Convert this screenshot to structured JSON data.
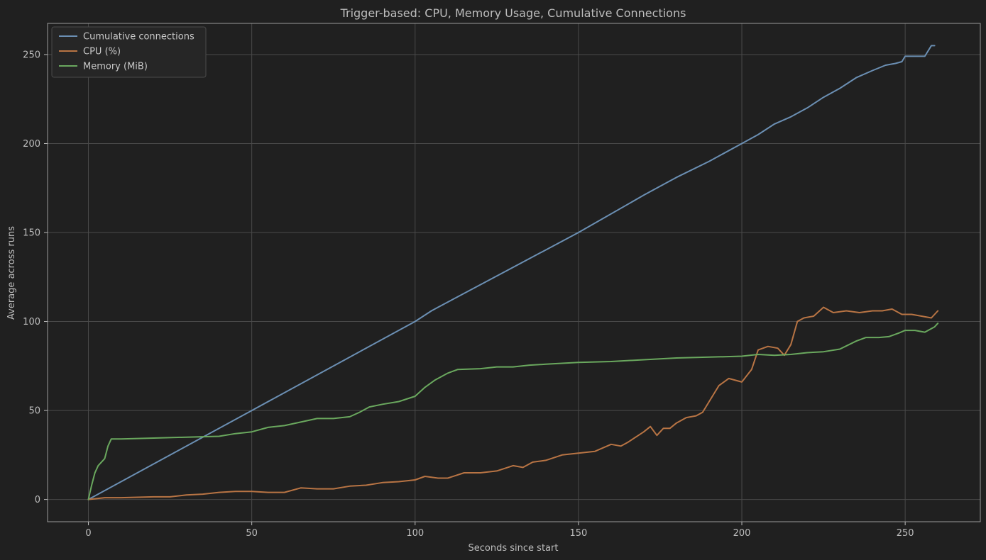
{
  "chart_data": {
    "type": "line",
    "title": "Trigger-based: CPU, Memory Usage, Cumulative Connections",
    "xlabel": "Seconds since start",
    "ylabel": "Average across runs",
    "xlim": [
      -12.5,
      273
    ],
    "ylim": [
      -12.5,
      267.5
    ],
    "xticks": [
      0,
      50,
      100,
      150,
      200,
      250
    ],
    "yticks": [
      0,
      50,
      100,
      150,
      200,
      250
    ],
    "grid": true,
    "legend_position": "top-left",
    "series": [
      {
        "name": "Cumulative connections",
        "color": "#6b8fb3",
        "points": [
          [
            0,
            0
          ],
          [
            50,
            50
          ],
          [
            100,
            100
          ],
          [
            105,
            106
          ],
          [
            107,
            108
          ],
          [
            150,
            150
          ],
          [
            170,
            171
          ],
          [
            180,
            181
          ],
          [
            190,
            190
          ],
          [
            200,
            200
          ],
          [
            205,
            205
          ],
          [
            210,
            211
          ],
          [
            215,
            215
          ],
          [
            220,
            220
          ],
          [
            225,
            226
          ],
          [
            230,
            231
          ],
          [
            235,
            237
          ],
          [
            240,
            241
          ],
          [
            244,
            244
          ],
          [
            247,
            245
          ],
          [
            249,
            246
          ],
          [
            250,
            249
          ],
          [
            253,
            249
          ],
          [
            256,
            249
          ],
          [
            258,
            255
          ],
          [
            259,
            255
          ]
        ]
      },
      {
        "name": "CPU (%)",
        "color": "#b87444",
        "points": [
          [
            0,
            0
          ],
          [
            5,
            1
          ],
          [
            10,
            1
          ],
          [
            20,
            1.5
          ],
          [
            25,
            1.5
          ],
          [
            30,
            2.5
          ],
          [
            35,
            3
          ],
          [
            40,
            4
          ],
          [
            45,
            4.5
          ],
          [
            50,
            4.5
          ],
          [
            55,
            4
          ],
          [
            60,
            4
          ],
          [
            65,
            6.5
          ],
          [
            70,
            6
          ],
          [
            75,
            6
          ],
          [
            80,
            7.5
          ],
          [
            85,
            8
          ],
          [
            90,
            9.5
          ],
          [
            95,
            10
          ],
          [
            100,
            11
          ],
          [
            103,
            13
          ],
          [
            107,
            12
          ],
          [
            110,
            12
          ],
          [
            115,
            15
          ],
          [
            120,
            15
          ],
          [
            125,
            16
          ],
          [
            130,
            19
          ],
          [
            133,
            18
          ],
          [
            136,
            21
          ],
          [
            140,
            22
          ],
          [
            145,
            25
          ],
          [
            150,
            26
          ],
          [
            155,
            27
          ],
          [
            160,
            31
          ],
          [
            163,
            30
          ],
          [
            165,
            32
          ],
          [
            170,
            38
          ],
          [
            172,
            41
          ],
          [
            174,
            36
          ],
          [
            176,
            40
          ],
          [
            178,
            40
          ],
          [
            180,
            43
          ],
          [
            183,
            46
          ],
          [
            186,
            47
          ],
          [
            188,
            49
          ],
          [
            190,
            55
          ],
          [
            193,
            64
          ],
          [
            196,
            68
          ],
          [
            200,
            66
          ],
          [
            203,
            73
          ],
          [
            205,
            84
          ],
          [
            208,
            86
          ],
          [
            211,
            85
          ],
          [
            213,
            81
          ],
          [
            215,
            87
          ],
          [
            217,
            100
          ],
          [
            219,
            102
          ],
          [
            222,
            103
          ],
          [
            225,
            108
          ],
          [
            228,
            105
          ],
          [
            232,
            106
          ],
          [
            236,
            105
          ],
          [
            240,
            106
          ],
          [
            243,
            106
          ],
          [
            246,
            107
          ],
          [
            249,
            104
          ],
          [
            252,
            104
          ],
          [
            255,
            103
          ],
          [
            258,
            102
          ],
          [
            260,
            106
          ]
        ]
      },
      {
        "name": "Memory (MiB)",
        "color": "#6aa85e",
        "points": [
          [
            0,
            0
          ],
          [
            1,
            8
          ],
          [
            2,
            15
          ],
          [
            3,
            19
          ],
          [
            5,
            23
          ],
          [
            6,
            30
          ],
          [
            7,
            34
          ],
          [
            10,
            34
          ],
          [
            20,
            34.5
          ],
          [
            30,
            35
          ],
          [
            40,
            35.5
          ],
          [
            45,
            37
          ],
          [
            50,
            38
          ],
          [
            55,
            40.5
          ],
          [
            60,
            41.5
          ],
          [
            65,
            43.5
          ],
          [
            70,
            45.5
          ],
          [
            75,
            45.5
          ],
          [
            80,
            46.5
          ],
          [
            83,
            49
          ],
          [
            86,
            52
          ],
          [
            90,
            53.5
          ],
          [
            95,
            55
          ],
          [
            100,
            58
          ],
          [
            103,
            63
          ],
          [
            106,
            67
          ],
          [
            110,
            71
          ],
          [
            113,
            73
          ],
          [
            120,
            73.5
          ],
          [
            125,
            74.5
          ],
          [
            130,
            74.5
          ],
          [
            135,
            75.5
          ],
          [
            140,
            76
          ],
          [
            145,
            76.5
          ],
          [
            150,
            77
          ],
          [
            160,
            77.5
          ],
          [
            170,
            78.5
          ],
          [
            180,
            79.5
          ],
          [
            190,
            80
          ],
          [
            200,
            80.5
          ],
          [
            205,
            81.5
          ],
          [
            210,
            81
          ],
          [
            215,
            81.5
          ],
          [
            220,
            82.5
          ],
          [
            225,
            83
          ],
          [
            230,
            84.5
          ],
          [
            235,
            89
          ],
          [
            238,
            91
          ],
          [
            242,
            91
          ],
          [
            245,
            91.5
          ],
          [
            248,
            93.5
          ],
          [
            250,
            95
          ],
          [
            253,
            95
          ],
          [
            256,
            94
          ],
          [
            259,
            97
          ],
          [
            260,
            99
          ]
        ]
      }
    ]
  }
}
